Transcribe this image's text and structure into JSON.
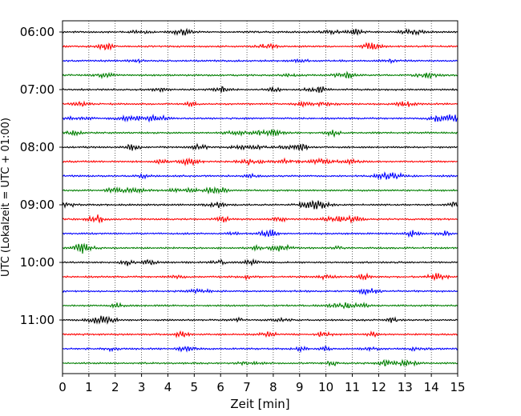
{
  "chart_data": {
    "type": "line",
    "title": "",
    "xlabel": "Zeit  [min]",
    "ylabel": "UTC (Lokalzeit = UTC + 01:00)",
    "xlim": [
      0,
      15
    ],
    "x_ticks": [
      0,
      1,
      2,
      3,
      4,
      5,
      6,
      7,
      8,
      9,
      10,
      11,
      12,
      13,
      14,
      15
    ],
    "y_tick_labels": [
      "06:00",
      "07:00",
      "08:00",
      "09:00",
      "10:00",
      "11:00"
    ],
    "grid": "vertical dotted lines at each minute",
    "trace_interval_minutes": 15,
    "trace_start": "06:00",
    "trace_count": 24,
    "trace_color_cycle": [
      "#000000",
      "#ff0000",
      "#0000ff",
      "#007f00"
    ],
    "y_extra_space_traces": 0.67
  }
}
